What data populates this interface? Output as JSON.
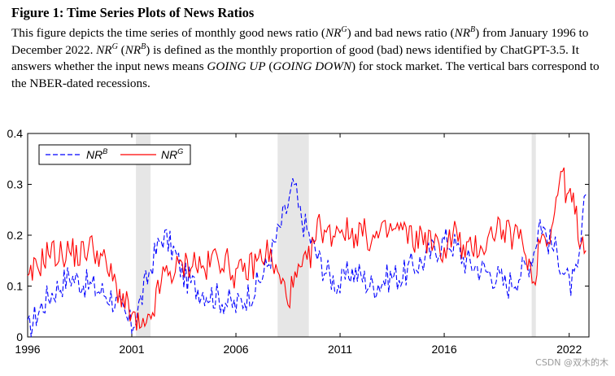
{
  "figure": {
    "title": "Figure 1: Time Series Plots of News Ratios",
    "caption": {
      "s1": "This figure depicts the time series of monthly good news ratio (",
      "nr_g": "NR",
      "g_sup": "G",
      "s2": ") and bad news ratio (",
      "nr_b": "NR",
      "b_sup": "B",
      "s3": ") from January 1996 to December 2022. ",
      "nr_g2": "NR",
      "g_sup2": "G",
      "s4": " (",
      "nr_b2": "NR",
      "b_sup2": "B",
      "s5": ") is defined as the monthly proportion of good (bad) news identified by ChatGPT-3.5. It answers whether the input news means ",
      "going_up": "GOING UP",
      "s6": " (",
      "going_down": "GOING DOWN",
      "s7": ") for stock market. The vertical bars correspond to the NBER-dated recessions."
    }
  },
  "watermark": "CSDN @双木的木",
  "chart_data": {
    "type": "line",
    "title": "",
    "xlabel": "",
    "ylabel": "",
    "xlim": [
      1996,
      2022.95
    ],
    "ylim": [
      0,
      0.4
    ],
    "x_ticks": [
      1996,
      2001,
      2006,
      2011,
      2016,
      2022
    ],
    "x_tick_labels": [
      "1996",
      "2001",
      "2006",
      "2011",
      "2016",
      "2022"
    ],
    "y_ticks": [
      0,
      0.1,
      0.2,
      0.3,
      0.4
    ],
    "y_tick_labels": [
      "0",
      "0.1",
      "0.2",
      "0.3",
      "0.4"
    ],
    "recessions": [
      [
        2001.2,
        2001.9
      ],
      [
        2008.0,
        2009.5
      ],
      [
        2020.2,
        2020.4
      ]
    ],
    "legend": {
      "position": "top-left",
      "entries": [
        {
          "label": "NR",
          "sup": "B",
          "style": "dashed",
          "color": "#0000ff"
        },
        {
          "label": "NR",
          "sup": "G",
          "style": "solid",
          "color": "#ff0000"
        }
      ]
    },
    "series": [
      {
        "name": "NR^B",
        "color": "#0000ff",
        "style": "dashed",
        "x": [
          1996.0,
          1996.5,
          1997.0,
          1997.5,
          1998.0,
          1998.5,
          1999.0,
          1999.5,
          2000.0,
          2000.5,
          2001.0,
          2001.5,
          2002.0,
          2002.5,
          2003.0,
          2003.5,
          2004.0,
          2004.5,
          2005.0,
          2005.5,
          2006.0,
          2006.5,
          2007.0,
          2007.5,
          2008.0,
          2008.5,
          2008.8,
          2009.0,
          2009.5,
          2010.0,
          2010.5,
          2011.0,
          2011.5,
          2012.0,
          2012.5,
          2013.0,
          2013.5,
          2014.0,
          2014.5,
          2015.0,
          2015.5,
          2016.0,
          2016.5,
          2017.0,
          2017.5,
          2018.0,
          2018.5,
          2019.0,
          2019.5,
          2020.0,
          2020.3,
          2020.6,
          2021.0,
          2021.5,
          2022.0,
          2022.4,
          2022.8
        ],
        "y": [
          0.01,
          0.05,
          0.08,
          0.1,
          0.12,
          0.11,
          0.1,
          0.09,
          0.08,
          0.05,
          0.02,
          0.08,
          0.15,
          0.2,
          0.17,
          0.12,
          0.1,
          0.09,
          0.08,
          0.07,
          0.06,
          0.08,
          0.1,
          0.14,
          0.2,
          0.26,
          0.3,
          0.25,
          0.2,
          0.15,
          0.12,
          0.1,
          0.13,
          0.12,
          0.1,
          0.11,
          0.12,
          0.12,
          0.14,
          0.15,
          0.17,
          0.19,
          0.18,
          0.15,
          0.14,
          0.13,
          0.12,
          0.1,
          0.12,
          0.14,
          0.17,
          0.23,
          0.19,
          0.16,
          0.1,
          0.12,
          0.28
        ]
      },
      {
        "name": "NR^G",
        "color": "#ff0000",
        "style": "solid",
        "x": [
          1996.0,
          1996.3,
          1996.7,
          1997.0,
          1997.5,
          1998.0,
          1998.5,
          1999.0,
          1999.5,
          2000.0,
          2000.5,
          2001.0,
          2001.3,
          2001.7,
          2002.0,
          2002.5,
          2003.0,
          2003.5,
          2004.0,
          2004.5,
          2005.0,
          2005.5,
          2006.0,
          2006.5,
          2007.0,
          2007.5,
          2008.0,
          2008.5,
          2009.0,
          2009.5,
          2010.0,
          2010.5,
          2011.0,
          2011.5,
          2012.0,
          2012.5,
          2013.0,
          2013.5,
          2014.0,
          2014.5,
          2015.0,
          2015.5,
          2016.0,
          2016.5,
          2017.0,
          2017.5,
          2018.0,
          2018.5,
          2019.0,
          2019.5,
          2020.0,
          2020.3,
          2020.6,
          2021.0,
          2021.3,
          2021.6,
          2021.9,
          2022.2,
          2022.5,
          2022.8
        ],
        "y": [
          0.1,
          0.13,
          0.15,
          0.17,
          0.16,
          0.17,
          0.16,
          0.18,
          0.16,
          0.12,
          0.08,
          0.04,
          0.02,
          0.01,
          0.05,
          0.12,
          0.13,
          0.14,
          0.15,
          0.13,
          0.16,
          0.15,
          0.12,
          0.13,
          0.15,
          0.17,
          0.12,
          0.08,
          0.12,
          0.15,
          0.22,
          0.2,
          0.22,
          0.2,
          0.21,
          0.19,
          0.2,
          0.21,
          0.21,
          0.19,
          0.2,
          0.18,
          0.17,
          0.21,
          0.16,
          0.18,
          0.18,
          0.22,
          0.2,
          0.2,
          0.16,
          0.1,
          0.2,
          0.2,
          0.24,
          0.33,
          0.28,
          0.26,
          0.2,
          0.17
        ]
      }
    ]
  }
}
